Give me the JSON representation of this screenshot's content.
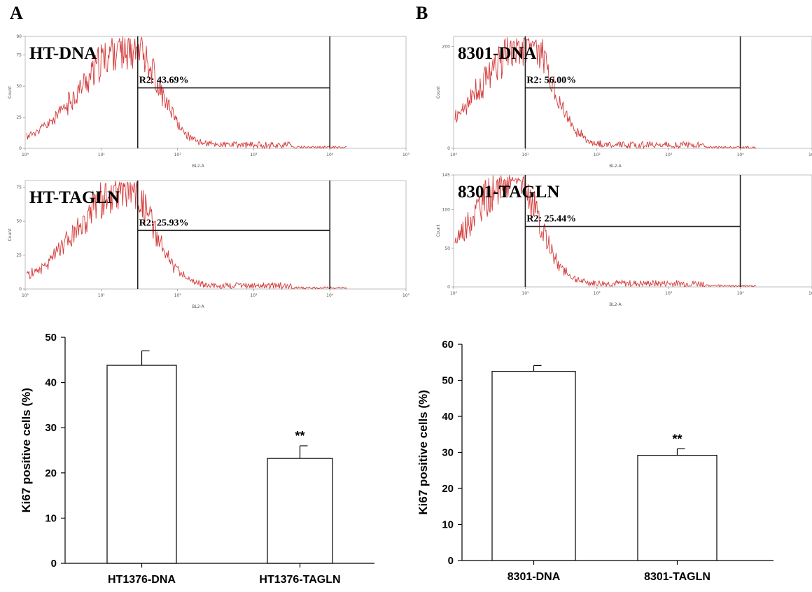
{
  "panels": {
    "a": {
      "letter": "A"
    },
    "b": {
      "letter": "B"
    }
  },
  "histogram_axis": {
    "count_label": "Count",
    "x_label": "BL2-A",
    "x_ticks": [
      "10⁰",
      "10¹",
      "10²",
      "10³",
      "10⁴",
      "10⁵"
    ]
  },
  "colors": {
    "histogram_line": "#d43a3a",
    "axis": "#000000",
    "frame": "#bfbfbf"
  },
  "chart_data": [
    {
      "type": "histogram",
      "panel": "A",
      "title": "HT-DNA",
      "gate_label": "R2: 43.69%",
      "y_ticks": [
        "0",
        "25",
        "50",
        "75",
        "90"
      ],
      "ylim": [
        0,
        90
      ],
      "xscale": "log",
      "gate_range": [
        30,
        10000
      ],
      "peak": {
        "x": 25,
        "y": 88
      },
      "curve_seed": 11
    },
    {
      "type": "histogram",
      "panel": "A",
      "title": "HT-TAGLN",
      "gate_label": "R2: 25.93%",
      "y_ticks": [
        "0",
        "25",
        "50",
        "75"
      ],
      "ylim": [
        0,
        80
      ],
      "xscale": "log",
      "gate_range": [
        30,
        10000
      ],
      "peak": {
        "x": 22,
        "y": 78
      },
      "curve_seed": 29
    },
    {
      "type": "histogram",
      "panel": "B",
      "title": "8301-DNA",
      "gate_label": "R2: 56.00%",
      "y_ticks": [
        "0",
        "200"
      ],
      "ylim": [
        0,
        220
      ],
      "xscale": "log",
      "gate_range": [
        10,
        10000
      ],
      "peak": {
        "x": 11,
        "y": 220
      },
      "curve_seed": 47
    },
    {
      "type": "histogram",
      "panel": "B",
      "title": "8301-TAGLN",
      "gate_label": "R2: 25.44%",
      "y_ticks": [
        "0",
        "50",
        "100",
        "145"
      ],
      "ylim": [
        0,
        145
      ],
      "xscale": "log",
      "gate_range": [
        10,
        10000
      ],
      "peak": {
        "x": 7,
        "y": 145
      },
      "curve_seed": 83
    },
    {
      "type": "bar",
      "panel": "A",
      "categories": [
        "HT1376-DNA",
        "HT1376-TAGLN"
      ],
      "values": [
        43.8,
        23.2
      ],
      "errors": [
        3.2,
        2.8
      ],
      "annotations": [
        "",
        "**"
      ],
      "ylabel": "Ki67 positive cells (%)",
      "ylim": [
        0,
        50
      ],
      "y_ticks": [
        "0",
        "10",
        "20",
        "30",
        "40",
        "50"
      ],
      "grid": false
    },
    {
      "type": "bar",
      "panel": "B",
      "categories": [
        "8301-DNA",
        "8301-TAGLN"
      ],
      "values": [
        52.5,
        29.2
      ],
      "errors": [
        1.6,
        1.8
      ],
      "annotations": [
        "",
        "**"
      ],
      "ylabel": "Ki67 positive cells (%)",
      "ylim": [
        0,
        60
      ],
      "y_ticks": [
        "0",
        "10",
        "20",
        "30",
        "40",
        "50",
        "60"
      ],
      "grid": false
    }
  ]
}
